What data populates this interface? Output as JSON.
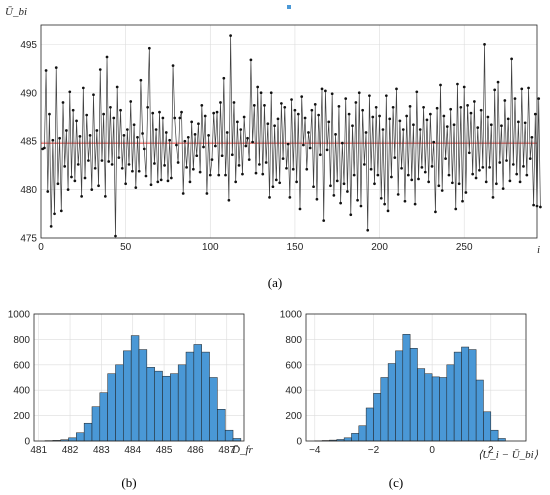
{
  "chart_data": [
    {
      "id": "a",
      "type": "line",
      "caption": "(a)",
      "ylabel": "Ū_bi",
      "xlabel": "i",
      "xlim": [
        0,
        293
      ],
      "ylim": [
        475,
        497
      ],
      "xticks": [
        0,
        50,
        100,
        150,
        200,
        250
      ],
      "yticks": [
        475,
        480,
        485,
        490,
        495
      ],
      "grid": true,
      "reference_line": {
        "value": 484.8,
        "color": "#e8302a"
      },
      "series": [
        {
          "color": "#404040",
          "x_start": 1,
          "values": [
            484.2,
            484.3,
            492.3,
            479.8,
            487.8,
            476.2,
            485.1,
            477.5,
            492.6,
            480.6,
            485.3,
            477.8,
            489.0,
            482.4,
            486.1,
            480.0,
            490.1,
            481.3,
            488.2,
            480.9,
            487.1,
            482.6,
            485.5,
            479.3,
            490.5,
            481.2,
            487.7,
            483.0,
            485.6,
            480.0,
            489.8,
            482.2,
            486.1,
            480.4,
            492.4,
            483.0,
            487.8,
            479.3,
            493.7,
            482.9,
            488.5,
            482.6,
            487.4,
            475.2,
            490.6,
            483.3,
            488.2,
            482.2,
            485.6,
            480.6,
            486.2,
            482.6,
            489.1,
            481.9,
            486.7,
            480.2,
            485.4,
            481.9,
            491.3,
            485.8,
            484.2,
            481.4,
            488.5,
            494.6,
            480.5,
            487.9,
            482.7,
            486.2,
            480.8,
            488.0,
            481.0,
            487.4,
            482.5,
            485.9,
            480.9,
            485.1,
            481.2,
            492.8,
            487.4,
            484.6,
            482.8,
            487.4,
            488.0,
            479.6,
            485.0,
            482.3,
            485.4,
            480.8,
            487.0,
            482.1,
            485.7,
            483.5,
            486.8,
            481.8,
            488.7,
            484.4,
            487.6,
            479.6,
            485.6,
            481.5,
            483.1,
            487.9,
            484.5,
            488.0,
            481.5,
            489.0,
            483.5,
            491.5,
            481.5,
            485.9,
            478.9,
            495.9,
            483.6,
            489.0,
            480.8,
            487.0,
            482.5,
            486.2,
            481.6,
            487.5,
            484.5,
            485.3,
            483.1,
            493.4,
            484.9,
            488.7,
            481.7,
            490.6,
            482.6,
            490.0,
            481.6,
            488.7,
            482.8,
            486.8,
            479.2,
            490.0,
            480.3,
            486.6,
            481.0,
            487.3,
            480.7,
            488.9,
            483.2,
            488.5,
            482.2,
            484.7,
            479.2,
            489.3,
            482.1,
            488.2,
            480.8,
            487.8,
            478.0,
            489.6,
            484.6,
            487.4,
            482.1,
            485.9,
            484.3,
            488.2,
            480.3,
            488.8,
            479.0,
            487.7,
            483.6,
            490.4,
            476.8,
            490.2,
            484.1,
            487.0,
            480.4,
            489.9,
            479.4,
            485.7,
            480.9,
            488.6,
            478.6,
            484.8,
            480.6,
            489.4,
            479.8,
            487.8,
            477.4,
            486.6,
            481.5,
            489.0,
            478.9,
            490.0,
            478.3,
            488.2,
            482.6,
            485.9,
            475.8,
            489.7,
            482.1,
            487.5,
            480.6,
            488.5,
            481.5,
            487.6,
            479.1,
            486.2,
            478.5,
            489.7,
            477.8,
            487.3,
            481.3,
            488.5,
            483.3,
            490.4,
            479.5,
            487.1,
            482.2,
            486.2,
            478.8,
            487.6,
            481.5,
            488.6,
            481.0,
            486.7,
            478.5,
            490.1,
            481.1,
            486.2,
            482.3,
            488.5,
            481.8,
            487.2,
            480.8,
            487.8,
            482.4,
            484.9,
            477.7,
            488.4,
            480.4,
            490.8,
            479.9,
            487.6,
            483.2,
            486.5,
            481.5,
            488.3,
            480.7,
            486.7,
            478.0,
            490.9,
            480.6,
            488.5,
            478.8,
            490.6,
            479.7,
            488.7,
            483.8,
            487.9,
            481.6,
            489.1,
            481.2,
            486.4,
            482.0,
            488.2,
            482.3,
            495.0,
            480.8,
            487.5,
            482.3,
            486.7,
            479.2,
            490.3,
            480.6,
            491.1,
            482.8,
            486.6,
            480.1,
            489.2,
            483.0,
            487.3,
            480.9,
            493.5,
            482.6,
            489.4,
            481.6,
            487.0,
            480.8,
            490.4,
            482.4,
            486.9,
            481.5,
            490.5,
            483.2,
            485.4,
            478.4,
            487.8,
            478.3,
            489.4,
            478.2
          ]
        }
      ]
    },
    {
      "id": "b",
      "type": "bar",
      "subtype": "histogram",
      "caption": "(b)",
      "xlabel": "D̄_fr",
      "ylabel": "",
      "xlim": [
        480.85,
        487.55
      ],
      "ylim": [
        0,
        1000
      ],
      "xticks": [
        481,
        482,
        483,
        484,
        485,
        486,
        487
      ],
      "yticks": [
        0,
        200,
        400,
        600,
        800,
        1000
      ],
      "bar_color": "#4a98d6",
      "bin_edges": [
        481.2,
        481.45,
        481.7,
        481.95,
        482.2,
        482.45,
        482.7,
        482.95,
        483.2,
        483.45,
        483.7,
        483.95,
        484.2,
        484.45,
        484.7,
        484.95,
        485.2,
        485.45,
        485.7,
        485.95,
        486.2,
        486.45,
        486.7,
        486.95,
        487.2,
        487.45
      ],
      "counts": [
        3,
        5,
        10,
        25,
        65,
        140,
        270,
        380,
        530,
        600,
        710,
        830,
        720,
        580,
        550,
        510,
        530,
        600,
        700,
        760,
        700,
        500,
        250,
        85,
        20
      ]
    },
    {
      "id": "c",
      "type": "bar",
      "subtype": "histogram",
      "caption": "(c)",
      "xlabel": "⟨U_i − Ū_bi⟩",
      "ylabel": "",
      "xlim": [
        -4.3,
        3.2
      ],
      "ylim": [
        0,
        1000
      ],
      "xticks": [
        -4,
        -2,
        0,
        2
      ],
      "yticks": [
        0,
        200,
        400,
        600,
        800,
        1000
      ],
      "bar_color": "#4a98d6",
      "bin_edges": [
        -4.0,
        -3.75,
        -3.5,
        -3.25,
        -3.0,
        -2.75,
        -2.5,
        -2.25,
        -2.0,
        -1.75,
        -1.5,
        -1.25,
        -1.0,
        -0.75,
        -0.5,
        -0.25,
        0.0,
        0.25,
        0.5,
        0.75,
        1.0,
        1.25,
        1.5,
        1.75,
        2.0,
        2.25,
        2.5
      ],
      "counts": [
        2,
        4,
        7,
        12,
        25,
        60,
        120,
        260,
        375,
        500,
        610,
        710,
        840,
        730,
        570,
        530,
        505,
        500,
        600,
        700,
        740,
        720,
        480,
        230,
        85,
        20
      ]
    }
  ]
}
